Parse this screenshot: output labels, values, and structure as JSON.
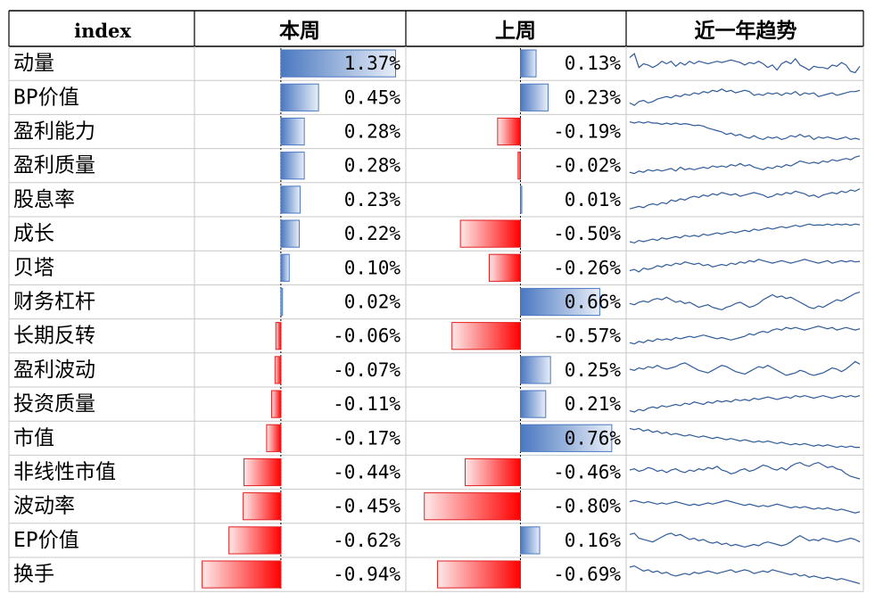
{
  "header": {
    "col_index": "index",
    "col_this_week": "本周",
    "col_last_week": "上周",
    "col_trend": "近一年趋势"
  },
  "chart_data": {
    "type": "table",
    "rows": [
      {
        "name": "动量",
        "this_week": 1.37,
        "last_week": 0.13,
        "this_week_label": "1.37%",
        "last_week_label": "0.13%"
      },
      {
        "name": "BP价值",
        "this_week": 0.45,
        "last_week": 0.23,
        "this_week_label": "0.45%",
        "last_week_label": "0.23%"
      },
      {
        "name": "盈利能力",
        "this_week": 0.28,
        "last_week": -0.19,
        "this_week_label": "0.28%",
        "last_week_label": "-0.19%"
      },
      {
        "name": "盈利质量",
        "this_week": 0.28,
        "last_week": -0.02,
        "this_week_label": "0.28%",
        "last_week_label": "-0.02%"
      },
      {
        "name": "股息率",
        "this_week": 0.23,
        "last_week": 0.01,
        "this_week_label": "0.23%",
        "last_week_label": "0.01%"
      },
      {
        "name": "成长",
        "this_week": 0.22,
        "last_week": -0.5,
        "this_week_label": "0.22%",
        "last_week_label": "-0.50%"
      },
      {
        "name": "贝塔",
        "this_week": 0.1,
        "last_week": -0.26,
        "this_week_label": "0.10%",
        "last_week_label": "-0.26%"
      },
      {
        "name": "财务杠杆",
        "this_week": 0.02,
        "last_week": 0.66,
        "this_week_label": "0.02%",
        "last_week_label": "0.66%"
      },
      {
        "name": "长期反转",
        "this_week": -0.06,
        "last_week": -0.57,
        "this_week_label": "-0.06%",
        "last_week_label": "-0.57%"
      },
      {
        "name": "盈利波动",
        "this_week": -0.07,
        "last_week": 0.25,
        "this_week_label": "-0.07%",
        "last_week_label": "0.25%"
      },
      {
        "name": "投资质量",
        "this_week": -0.11,
        "last_week": 0.21,
        "this_week_label": "-0.11%",
        "last_week_label": "0.21%"
      },
      {
        "name": "市值",
        "this_week": -0.17,
        "last_week": 0.76,
        "this_week_label": "-0.17%",
        "last_week_label": "0.76%"
      },
      {
        "name": "非线性市值",
        "this_week": -0.44,
        "last_week": -0.46,
        "this_week_label": "-0.44%",
        "last_week_label": "-0.46%"
      },
      {
        "name": "波动率",
        "this_week": -0.45,
        "last_week": -0.8,
        "this_week_label": "-0.45%",
        "last_week_label": "-0.80%"
      },
      {
        "name": "EP价值",
        "this_week": -0.62,
        "last_week": 0.16,
        "this_week_label": "-0.62%",
        "last_week_label": "0.16%"
      },
      {
        "name": "换手",
        "this_week": -0.94,
        "last_week": -0.69,
        "this_week_label": "-0.94%",
        "last_week_label": "-0.69%"
      }
    ],
    "trend_shapes": [
      [
        0.7,
        0.85,
        0.3,
        0.45,
        0.4,
        0.3,
        0.4,
        0.55,
        0.45,
        0.55,
        0.35,
        0.5,
        0.4,
        0.55,
        0.45,
        0.55,
        0.5,
        0.45,
        0.5,
        0.55,
        0.5,
        0.55,
        0.6,
        0.55,
        0.5,
        0.4,
        0.5,
        0.45,
        0.55,
        0.45,
        0.3,
        0.4,
        0.2,
        0.45,
        0.55,
        0.45,
        0.65,
        0.4,
        0.3,
        0.2,
        0.35,
        0.3,
        0.3,
        0.25,
        0.4,
        0.35,
        0.5,
        0.4,
        0.15,
        0.1,
        0.35
      ],
      [
        0.25,
        0.15,
        0.3,
        0.35,
        0.25,
        0.3,
        0.4,
        0.45,
        0.5,
        0.45,
        0.55,
        0.5,
        0.6,
        0.55,
        0.65,
        0.6,
        0.7,
        0.65,
        0.75,
        0.7,
        0.8,
        0.7,
        0.75,
        0.65,
        0.7,
        0.75,
        0.7,
        0.55,
        0.6,
        0.55,
        0.65,
        0.6,
        0.65,
        0.55,
        0.65,
        0.6,
        0.7,
        0.55,
        0.65,
        0.6,
        0.65,
        0.5,
        0.55,
        0.6,
        0.65,
        0.55,
        0.6,
        0.65,
        0.7,
        0.7,
        0.75
      ],
      [
        0.85,
        0.8,
        0.85,
        0.8,
        0.85,
        0.8,
        0.8,
        0.75,
        0.8,
        0.75,
        0.8,
        0.75,
        0.78,
        0.75,
        0.7,
        0.72,
        0.68,
        0.6,
        0.55,
        0.5,
        0.45,
        0.35,
        0.4,
        0.3,
        0.35,
        0.25,
        0.2,
        0.3,
        0.2,
        0.15,
        0.25,
        0.2,
        0.25,
        0.15,
        0.2,
        0.3,
        0.25,
        0.35,
        0.25,
        0.3,
        0.15,
        0.25,
        0.2,
        0.25,
        0.2,
        0.15,
        0.2,
        0.25,
        0.15,
        0.2,
        0.15
      ],
      [
        0.2,
        0.15,
        0.25,
        0.2,
        0.3,
        0.25,
        0.3,
        0.25,
        0.3,
        0.35,
        0.25,
        0.4,
        0.3,
        0.35,
        0.3,
        0.35,
        0.4,
        0.35,
        0.45,
        0.4,
        0.45,
        0.4,
        0.5,
        0.45,
        0.55,
        0.45,
        0.5,
        0.4,
        0.35,
        0.3,
        0.4,
        0.35,
        0.45,
        0.4,
        0.5,
        0.45,
        0.55,
        0.65,
        0.6,
        0.55,
        0.6,
        0.55,
        0.65,
        0.6,
        0.7,
        0.65,
        0.7,
        0.75,
        0.7,
        0.8,
        0.85
      ],
      [
        0.1,
        0.15,
        0.2,
        0.15,
        0.25,
        0.3,
        0.25,
        0.35,
        0.3,
        0.45,
        0.4,
        0.5,
        0.45,
        0.55,
        0.6,
        0.55,
        0.65,
        0.6,
        0.7,
        0.65,
        0.75,
        0.7,
        0.65,
        0.7,
        0.6,
        0.65,
        0.7,
        0.75,
        0.7,
        0.65,
        0.55,
        0.6,
        0.7,
        0.65,
        0.75,
        0.7,
        0.8,
        0.75,
        0.7,
        0.6,
        0.65,
        0.55,
        0.65,
        0.7,
        0.75,
        0.7,
        0.8,
        0.75,
        0.85,
        0.8,
        0.9
      ],
      [
        0.15,
        0.1,
        0.2,
        0.15,
        0.2,
        0.25,
        0.2,
        0.3,
        0.25,
        0.3,
        0.35,
        0.3,
        0.4,
        0.35,
        0.4,
        0.35,
        0.45,
        0.4,
        0.45,
        0.5,
        0.45,
        0.5,
        0.55,
        0.5,
        0.55,
        0.6,
        0.55,
        0.65,
        0.6,
        0.65,
        0.7,
        0.65,
        0.7,
        0.75,
        0.7,
        0.75,
        0.8,
        0.75,
        0.8,
        0.85,
        0.8,
        0.82,
        0.8,
        0.85,
        0.8,
        0.85,
        0.82,
        0.85,
        0.8,
        0.85,
        0.82
      ],
      [
        0.35,
        0.4,
        0.3,
        0.45,
        0.4,
        0.45,
        0.55,
        0.5,
        0.6,
        0.55,
        0.65,
        0.6,
        0.7,
        0.65,
        0.6,
        0.65,
        0.55,
        0.6,
        0.5,
        0.55,
        0.6,
        0.55,
        0.65,
        0.6,
        0.7,
        0.65,
        0.75,
        0.7,
        0.8,
        0.75,
        0.7,
        0.65,
        0.7,
        0.75,
        0.7,
        0.65,
        0.7,
        0.75,
        0.8,
        0.75,
        0.7,
        0.65,
        0.7,
        0.75,
        0.65,
        0.7,
        0.75,
        0.7,
        0.75,
        0.7,
        0.72
      ],
      [
        0.4,
        0.35,
        0.45,
        0.5,
        0.45,
        0.55,
        0.6,
        0.55,
        0.65,
        0.55,
        0.45,
        0.5,
        0.4,
        0.45,
        0.35,
        0.25,
        0.3,
        0.35,
        0.25,
        0.2,
        0.15,
        0.25,
        0.3,
        0.4,
        0.45,
        0.35,
        0.25,
        0.3,
        0.4,
        0.55,
        0.65,
        0.75,
        0.65,
        0.7,
        0.6,
        0.65,
        0.55,
        0.45,
        0.35,
        0.25,
        0.2,
        0.3,
        0.25,
        0.35,
        0.45,
        0.55,
        0.5,
        0.6,
        0.7,
        0.8,
        0.85
      ],
      [
        0.2,
        0.15,
        0.25,
        0.2,
        0.3,
        0.25,
        0.35,
        0.3,
        0.35,
        0.3,
        0.4,
        0.35,
        0.4,
        0.45,
        0.4,
        0.45,
        0.5,
        0.45,
        0.4,
        0.35,
        0.4,
        0.35,
        0.3,
        0.35,
        0.4,
        0.45,
        0.55,
        0.5,
        0.6,
        0.65,
        0.6,
        0.7,
        0.75,
        0.7,
        0.8,
        0.75,
        0.8,
        0.75,
        0.7,
        0.75,
        0.8,
        0.85,
        0.8,
        0.75,
        0.8,
        0.7,
        0.75,
        0.8,
        0.75,
        0.7,
        0.75
      ],
      [
        0.5,
        0.45,
        0.55,
        0.5,
        0.6,
        0.55,
        0.65,
        0.55,
        0.5,
        0.55,
        0.6,
        0.7,
        0.75,
        0.65,
        0.55,
        0.45,
        0.4,
        0.35,
        0.45,
        0.55,
        0.65,
        0.6,
        0.5,
        0.4,
        0.35,
        0.3,
        0.4,
        0.5,
        0.6,
        0.55,
        0.65,
        0.55,
        0.45,
        0.35,
        0.25,
        0.3,
        0.35,
        0.45,
        0.4,
        0.3,
        0.25,
        0.3,
        0.35,
        0.45,
        0.55,
        0.5,
        0.4,
        0.5,
        0.65,
        0.8,
        0.7
      ],
      [
        0.2,
        0.15,
        0.25,
        0.2,
        0.3,
        0.35,
        0.3,
        0.4,
        0.35,
        0.4,
        0.45,
        0.4,
        0.5,
        0.45,
        0.55,
        0.5,
        0.45,
        0.55,
        0.5,
        0.6,
        0.55,
        0.6,
        0.55,
        0.65,
        0.6,
        0.65,
        0.6,
        0.7,
        0.65,
        0.7,
        0.75,
        0.7,
        0.65,
        0.7,
        0.75,
        0.7,
        0.8,
        0.75,
        0.8,
        0.75,
        0.7,
        0.75,
        0.8,
        0.75,
        0.7,
        0.75,
        0.8,
        0.75,
        0.8,
        0.75,
        0.8
      ],
      [
        0.85,
        0.8,
        0.85,
        0.75,
        0.8,
        0.7,
        0.75,
        0.65,
        0.7,
        0.6,
        0.65,
        0.6,
        0.55,
        0.6,
        0.55,
        0.5,
        0.55,
        0.5,
        0.45,
        0.5,
        0.45,
        0.4,
        0.45,
        0.4,
        0.35,
        0.4,
        0.35,
        0.3,
        0.35,
        0.3,
        0.35,
        0.3,
        0.25,
        0.3,
        0.25,
        0.2,
        0.25,
        0.2,
        0.25,
        0.2,
        0.15,
        0.2,
        0.15,
        0.2,
        0.15,
        0.1,
        0.15,
        0.1,
        0.15,
        0.1,
        0.1
      ],
      [
        0.55,
        0.6,
        0.5,
        0.55,
        0.65,
        0.6,
        0.5,
        0.55,
        0.45,
        0.55,
        0.6,
        0.5,
        0.45,
        0.55,
        0.5,
        0.6,
        0.55,
        0.65,
        0.6,
        0.7,
        0.55,
        0.5,
        0.4,
        0.45,
        0.55,
        0.6,
        0.5,
        0.55,
        0.65,
        0.75,
        0.7,
        0.6,
        0.55,
        0.65,
        0.55,
        0.7,
        0.8,
        0.85,
        0.75,
        0.7,
        0.8,
        0.85,
        0.75,
        0.65,
        0.7,
        0.6,
        0.55,
        0.4,
        0.3,
        0.25,
        0.2
      ],
      [
        0.65,
        0.7,
        0.65,
        0.6,
        0.65,
        0.6,
        0.55,
        0.6,
        0.55,
        0.6,
        0.65,
        0.6,
        0.55,
        0.5,
        0.55,
        0.5,
        0.55,
        0.6,
        0.55,
        0.6,
        0.65,
        0.7,
        0.65,
        0.6,
        0.55,
        0.5,
        0.55,
        0.5,
        0.45,
        0.5,
        0.45,
        0.5,
        0.55,
        0.5,
        0.45,
        0.4,
        0.45,
        0.4,
        0.45,
        0.4,
        0.35,
        0.4,
        0.35,
        0.4,
        0.35,
        0.3,
        0.35,
        0.3,
        0.25,
        0.2,
        0.25
      ],
      [
        0.7,
        0.75,
        0.55,
        0.5,
        0.45,
        0.4,
        0.5,
        0.6,
        0.7,
        0.75,
        0.65,
        0.7,
        0.6,
        0.5,
        0.55,
        0.45,
        0.5,
        0.4,
        0.35,
        0.4,
        0.3,
        0.35,
        0.25,
        0.3,
        0.25,
        0.2,
        0.25,
        0.3,
        0.25,
        0.35,
        0.4,
        0.35,
        0.3,
        0.25,
        0.3,
        0.4,
        0.55,
        0.65,
        0.55,
        0.45,
        0.5,
        0.45,
        0.55,
        0.5,
        0.45,
        0.4,
        0.45,
        0.5,
        0.55,
        0.5,
        0.4
      ],
      [
        0.75,
        0.8,
        0.7,
        0.6,
        0.65,
        0.55,
        0.6,
        0.5,
        0.55,
        0.45,
        0.4,
        0.45,
        0.5,
        0.45,
        0.55,
        0.5,
        0.55,
        0.6,
        0.55,
        0.5,
        0.55,
        0.6,
        0.65,
        0.55,
        0.6,
        0.65,
        0.6,
        0.5,
        0.55,
        0.6,
        0.55,
        0.65,
        0.6,
        0.55,
        0.5,
        0.45,
        0.5,
        0.4,
        0.45,
        0.35,
        0.4,
        0.35,
        0.3,
        0.35,
        0.3,
        0.25,
        0.3,
        0.25,
        0.2,
        0.15,
        0.1
      ]
    ],
    "this_week_range": [
      -1.0,
      1.45
    ],
    "last_week_range": [
      -0.85,
      0.85
    ],
    "colors": {
      "positive_fill": "#4a78c0",
      "positive_fill_light": "#e8eef8",
      "positive_border": "#4a78c0",
      "negative_fill": "#ff0000",
      "negative_fill_light": "#ffe8e8",
      "negative_border": "#e02020",
      "trend_line": "#2f5b9a",
      "grid": "#c8c8c8",
      "border": "#000000"
    }
  }
}
